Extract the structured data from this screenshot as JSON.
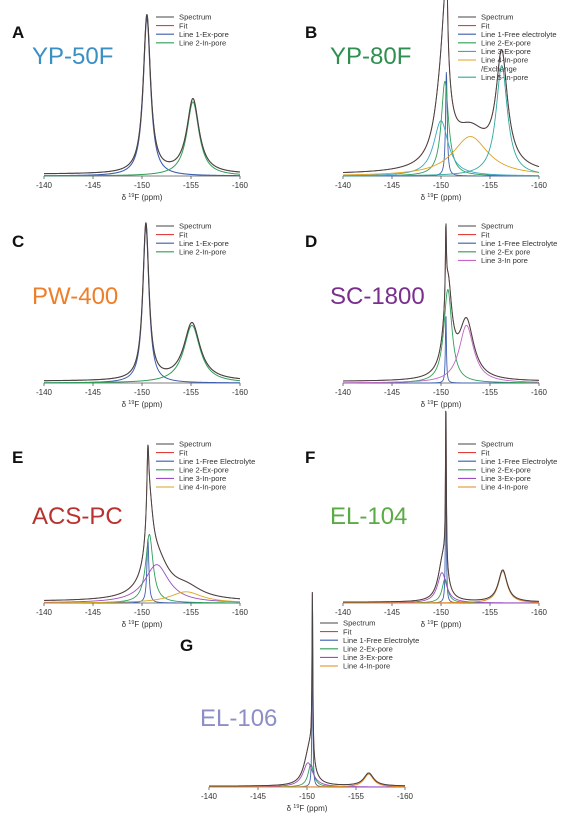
{
  "chart_data": [
    {
      "type": "line",
      "panel": "A",
      "sample": "YP-50F",
      "sample_color": "#3a8fc4",
      "xlabel_pre": "δ ",
      "xlabel_sup": "19",
      "xlabel_post": "F (ppm)",
      "xlim": [
        -140,
        -160
      ],
      "xticks": [
        -140,
        -145,
        -150,
        -155,
        -160
      ],
      "series": [
        {
          "name": "Spectrum",
          "color": "#444444",
          "width": 1.1,
          "peaks": [
            {
              "x0": -150.5,
              "g": 0.45,
              "h": 1.0
            },
            {
              "x0": -155.2,
              "g": 0.75,
              "h": 0.47
            }
          ],
          "base": 0.012
        },
        {
          "name": "Fit",
          "color": "#e0403a",
          "width": 0.9,
          "peaks": [
            {
              "x0": -150.5,
              "g": 0.45,
              "h": 1.0
            },
            {
              "x0": -155.2,
              "g": 0.75,
              "h": 0.47
            }
          ],
          "base": 0.012
        },
        {
          "name": "Line 1-Ex-pore",
          "color": "#3d5fae",
          "width": 1.1,
          "peaks": [
            {
              "x0": -150.5,
              "g": 0.45,
              "h": 1.0
            }
          ],
          "base": 0.0
        },
        {
          "name": "Line 2-In-pore",
          "color": "#2e9e57",
          "width": 1.0,
          "peaks": [
            {
              "x0": -155.2,
              "g": 0.75,
              "h": 0.47
            }
          ],
          "base": 0.0
        }
      ]
    },
    {
      "type": "line",
      "panel": "B",
      "sample": "YP-80F",
      "sample_color": "#2f8f50",
      "xlabel_pre": "δ ",
      "xlabel_sup": "19",
      "xlabel_post": "F (ppm)",
      "xlim": [
        -140,
        -160
      ],
      "xticks": [
        -140,
        -145,
        -150,
        -155,
        -160
      ],
      "series": [
        {
          "name": "Spectrum",
          "color": "#444444",
          "width": 1.0,
          "peaks": [
            {
              "x0": -150.55,
              "g": 0.1,
              "h": 0.66
            },
            {
              "x0": -150.4,
              "g": 0.45,
              "h": 0.6
            },
            {
              "x0": -150.0,
              "g": 0.9,
              "h": 0.35
            },
            {
              "x0": -153.0,
              "g": 2.2,
              "h": 0.25
            },
            {
              "x0": -156.2,
              "g": 0.7,
              "h": 0.7
            }
          ],
          "base": 0.01
        },
        {
          "name": "Fit",
          "color": "#e0403a",
          "width": 0.9,
          "peaks": [
            {
              "x0": -150.55,
              "g": 0.1,
              "h": 0.66
            },
            {
              "x0": -150.4,
              "g": 0.45,
              "h": 0.6
            },
            {
              "x0": -150.0,
              "g": 0.9,
              "h": 0.35
            },
            {
              "x0": -153.0,
              "g": 2.2,
              "h": 0.25
            },
            {
              "x0": -156.2,
              "g": 0.7,
              "h": 0.7
            }
          ],
          "base": 0.01
        },
        {
          "name": "Line 1-Free electrolyte",
          "color": "#3d5fae",
          "width": 0.9,
          "peaks": [
            {
              "x0": -150.55,
              "g": 0.1,
              "h": 0.66
            }
          ],
          "base": 0.0
        },
        {
          "name": "Line 2-Ex-pore",
          "color": "#2e9e57",
          "width": 0.9,
          "peaks": [
            {
              "x0": -150.4,
              "g": 0.45,
              "h": 0.6
            }
          ],
          "base": 0.0
        },
        {
          "name": "Line 3-Ex-pore",
          "color": "#3aa8c8",
          "width": 0.9,
          "peaks": [
            {
              "x0": -150.0,
              "g": 0.9,
              "h": 0.35
            }
          ],
          "base": 0.0
        },
        {
          "name": "Line 4-In-pore",
          "name2": "/Exchange",
          "color": "#e0a020",
          "width": 0.9,
          "peaks": [
            {
              "x0": -153.0,
              "g": 2.2,
              "h": 0.25
            }
          ],
          "base": 0.0
        },
        {
          "name": "Line 5-In-pore",
          "color": "#2ea8a0",
          "width": 0.9,
          "peaks": [
            {
              "x0": -156.2,
              "g": 0.7,
              "h": 0.7
            }
          ],
          "base": 0.0
        }
      ]
    },
    {
      "type": "line",
      "panel": "C",
      "sample": "PW-400",
      "sample_color": "#ee7f2a",
      "xlabel_pre": "δ ",
      "xlabel_sup": "19",
      "xlabel_post": "F (ppm)",
      "xlim": [
        -140,
        -160
      ],
      "xticks": [
        -140,
        -145,
        -150,
        -155,
        -160
      ],
      "series": [
        {
          "name": "Spectrum",
          "color": "#444444",
          "width": 1.1,
          "peaks": [
            {
              "x0": -150.4,
              "g": 0.38,
              "h": 1.0
            },
            {
              "x0": -155.1,
              "g": 1.0,
              "h": 0.37
            }
          ],
          "base": 0.012
        },
        {
          "name": "Fit",
          "color": "#e0403a",
          "width": 0.9,
          "peaks": [
            {
              "x0": -150.4,
              "g": 0.38,
              "h": 1.0
            },
            {
              "x0": -155.1,
              "g": 1.0,
              "h": 0.37
            }
          ],
          "base": 0.012
        },
        {
          "name": "Line 1-Ex-pore",
          "color": "#3d5fae",
          "width": 1.0,
          "peaks": [
            {
              "x0": -150.4,
              "g": 0.38,
              "h": 1.0
            }
          ],
          "base": 0.0
        },
        {
          "name": "Line 2-In-pore",
          "color": "#2e9e57",
          "width": 1.0,
          "peaks": [
            {
              "x0": -155.1,
              "g": 1.0,
              "h": 0.37
            }
          ],
          "base": 0.0
        }
      ]
    },
    {
      "type": "line",
      "panel": "D",
      "sample": "SC-1800",
      "sample_color": "#7a2e8e",
      "xlabel_pre": "δ ",
      "xlabel_sup": "19",
      "xlabel_post": "F (ppm)",
      "xlim": [
        -140,
        -160
      ],
      "xticks": [
        -140,
        -145,
        -150,
        -155,
        -160
      ],
      "series": [
        {
          "name": "Spectrum",
          "color": "#444444",
          "width": 1.0,
          "peaks": [
            {
              "x0": -150.5,
              "g": 0.06,
              "h": 0.45
            },
            {
              "x0": -150.7,
              "g": 0.5,
              "h": 0.6
            },
            {
              "x0": -152.6,
              "g": 0.9,
              "h": 0.37
            }
          ],
          "base": 0.01
        },
        {
          "name": "Fit",
          "color": "#e0403a",
          "width": 0.9,
          "peaks": [
            {
              "x0": -150.5,
              "g": 0.06,
              "h": 0.45
            },
            {
              "x0": -150.7,
              "g": 0.5,
              "h": 0.6
            },
            {
              "x0": -152.6,
              "g": 0.9,
              "h": 0.37
            }
          ],
          "base": 0.01
        },
        {
          "name": "Line 1-Free Electrolyte",
          "color": "#3d5fae",
          "width": 0.9,
          "peaks": [
            {
              "x0": -150.5,
              "g": 0.06,
              "h": 0.45
            }
          ],
          "base": 0.0
        },
        {
          "name": "Line 2-Ex pore",
          "color": "#2e9e57",
          "width": 0.9,
          "peaks": [
            {
              "x0": -150.7,
              "g": 0.5,
              "h": 0.6
            }
          ],
          "base": 0.0
        },
        {
          "name": "Line 3-In pore",
          "color": "#c266c8",
          "width": 0.9,
          "peaks": [
            {
              "x0": -152.6,
              "g": 0.9,
              "h": 0.37
            }
          ],
          "base": 0.0
        }
      ]
    },
    {
      "type": "line",
      "panel": "E",
      "sample": "ACS-PC",
      "sample_color": "#b8322f",
      "xlabel_pre": "δ ",
      "xlabel_sup": "19",
      "xlabel_post": "F (ppm)",
      "xlim": [
        -140,
        -160
      ],
      "xticks": [
        -140,
        -145,
        -150,
        -155,
        -160
      ],
      "series": [
        {
          "name": "Spectrum",
          "color": "#444444",
          "width": 1.0,
          "peaks": [
            {
              "x0": -150.6,
              "g": 0.12,
              "h": 0.4
            },
            {
              "x0": -150.75,
              "g": 0.45,
              "h": 0.43
            },
            {
              "x0": -151.5,
              "g": 1.5,
              "h": 0.24
            },
            {
              "x0": -154.5,
              "g": 2.0,
              "h": 0.07
            }
          ],
          "base": 0.01
        },
        {
          "name": "Fit",
          "color": "#e0403a",
          "width": 0.9,
          "peaks": [
            {
              "x0": -150.6,
              "g": 0.12,
              "h": 0.4
            },
            {
              "x0": -150.75,
              "g": 0.45,
              "h": 0.43
            },
            {
              "x0": -151.5,
              "g": 1.5,
              "h": 0.24
            },
            {
              "x0": -154.5,
              "g": 2.0,
              "h": 0.07
            }
          ],
          "base": 0.01
        },
        {
          "name": "Line 1-Free Electrolyte",
          "color": "#3d5fae",
          "width": 0.9,
          "peaks": [
            {
              "x0": -150.6,
              "g": 0.12,
              "h": 0.4
            }
          ],
          "base": 0.0
        },
        {
          "name": "Line 2-Ex-pore",
          "color": "#2e9e57",
          "width": 0.9,
          "peaks": [
            {
              "x0": -150.75,
              "g": 0.45,
              "h": 0.43
            }
          ],
          "base": 0.0
        },
        {
          "name": "Line 3-In-pore",
          "color": "#9b4dc0",
          "width": 0.9,
          "peaks": [
            {
              "x0": -151.5,
              "g": 1.5,
              "h": 0.24
            }
          ],
          "base": 0.0
        },
        {
          "name": "Line 4-In-pore",
          "color": "#d6a520",
          "width": 0.9,
          "peaks": [
            {
              "x0": -154.5,
              "g": 2.0,
              "h": 0.07
            }
          ],
          "base": 0.0
        }
      ]
    },
    {
      "type": "line",
      "panel": "F",
      "sample": "EL-104",
      "sample_color": "#5aaa45",
      "xlabel_pre": "δ ",
      "xlabel_sup": "19",
      "xlabel_post": "F (ppm)",
      "xlim": [
        -140,
        -160
      ],
      "xticks": [
        -140,
        -145,
        -150,
        -155,
        -160
      ],
      "series": [
        {
          "name": "Spectrum",
          "color": "#444444",
          "width": 1.0,
          "peaks": [
            {
              "x0": -150.5,
              "g": 0.05,
              "h": 1.0
            },
            {
              "x0": -150.4,
              "g": 0.35,
              "h": 0.15
            },
            {
              "x0": -150.1,
              "g": 0.55,
              "h": 0.19
            },
            {
              "x0": -156.3,
              "g": 0.55,
              "h": 0.2
            }
          ],
          "base": 0.005
        },
        {
          "name": "Fit",
          "color": "#e0403a",
          "width": 0.9,
          "peaks": [
            {
              "x0": -150.5,
              "g": 0.05,
              "h": 1.0
            },
            {
              "x0": -150.4,
              "g": 0.35,
              "h": 0.15
            },
            {
              "x0": -150.1,
              "g": 0.55,
              "h": 0.19
            },
            {
              "x0": -156.3,
              "g": 0.55,
              "h": 0.2
            }
          ],
          "base": 0.005
        },
        {
          "name": "Line 1-Free Electrolyte",
          "color": "#3d5fae",
          "width": 0.9,
          "peaks": [
            {
              "x0": -150.5,
              "g": 0.05,
              "h": 1.0
            }
          ],
          "base": 0.0
        },
        {
          "name": "Line 2-Ex-pore",
          "color": "#2e9e57",
          "width": 0.9,
          "peaks": [
            {
              "x0": -150.4,
              "g": 0.35,
              "h": 0.15
            }
          ],
          "base": 0.0
        },
        {
          "name": "Line 3-Ex-pore",
          "color": "#9b4dc0",
          "width": 0.9,
          "peaks": [
            {
              "x0": -150.1,
              "g": 0.55,
              "h": 0.19
            }
          ],
          "base": 0.0
        },
        {
          "name": "Line 4-In-pore",
          "color": "#e08a20",
          "width": 1.0,
          "peaks": [
            {
              "x0": -156.3,
              "g": 0.55,
              "h": 0.2
            }
          ],
          "base": 0.0
        }
      ]
    },
    {
      "type": "line",
      "panel": "G",
      "sample": "EL-106",
      "sample_color": "#8d8ec8",
      "xlabel_pre": "δ ",
      "xlabel_sup": "19",
      "xlabel_post": "F (ppm)",
      "xlim": [
        -140,
        -160
      ],
      "xticks": [
        -140,
        -145,
        -150,
        -155,
        -160
      ],
      "series": [
        {
          "name": "Spectrum",
          "color": "#444444",
          "width": 1.0,
          "peaks": [
            {
              "x0": -150.55,
              "g": 0.05,
              "h": 1.0
            },
            {
              "x0": -150.4,
              "g": 0.35,
              "h": 0.14
            },
            {
              "x0": -150.1,
              "g": 0.6,
              "h": 0.15
            },
            {
              "x0": -156.3,
              "g": 0.6,
              "h": 0.08
            }
          ],
          "base": 0.005
        },
        {
          "name": "Fit",
          "color": "#e0403a",
          "width": 0.9,
          "peaks": [
            {
              "x0": -150.55,
              "g": 0.05,
              "h": 1.0
            },
            {
              "x0": -150.4,
              "g": 0.35,
              "h": 0.14
            },
            {
              "x0": -150.1,
              "g": 0.6,
              "h": 0.15
            },
            {
              "x0": -156.3,
              "g": 0.6,
              "h": 0.08
            }
          ],
          "base": 0.005
        },
        {
          "name": "Line 1-Free Electrolyte",
          "color": "#3d5fae",
          "width": 0.9,
          "peaks": [
            {
              "x0": -150.55,
              "g": 0.05,
              "h": 1.0
            }
          ],
          "base": 0.0
        },
        {
          "name": "Line 2-Ex-pore",
          "color": "#2e9e57",
          "width": 0.9,
          "peaks": [
            {
              "x0": -150.4,
              "g": 0.35,
              "h": 0.14
            }
          ],
          "base": 0.0
        },
        {
          "name": "Line 3-Ex-pore",
          "color": "#9b4dc0",
          "width": 0.9,
          "peaks": [
            {
              "x0": -150.1,
              "g": 0.6,
              "h": 0.15
            }
          ],
          "base": 0.0
        },
        {
          "name": "Line 4-In-pore",
          "color": "#e08a20",
          "width": 1.0,
          "peaks": [
            {
              "x0": -156.3,
              "g": 0.6,
              "h": 0.08
            }
          ],
          "base": 0.0
        }
      ]
    }
  ]
}
